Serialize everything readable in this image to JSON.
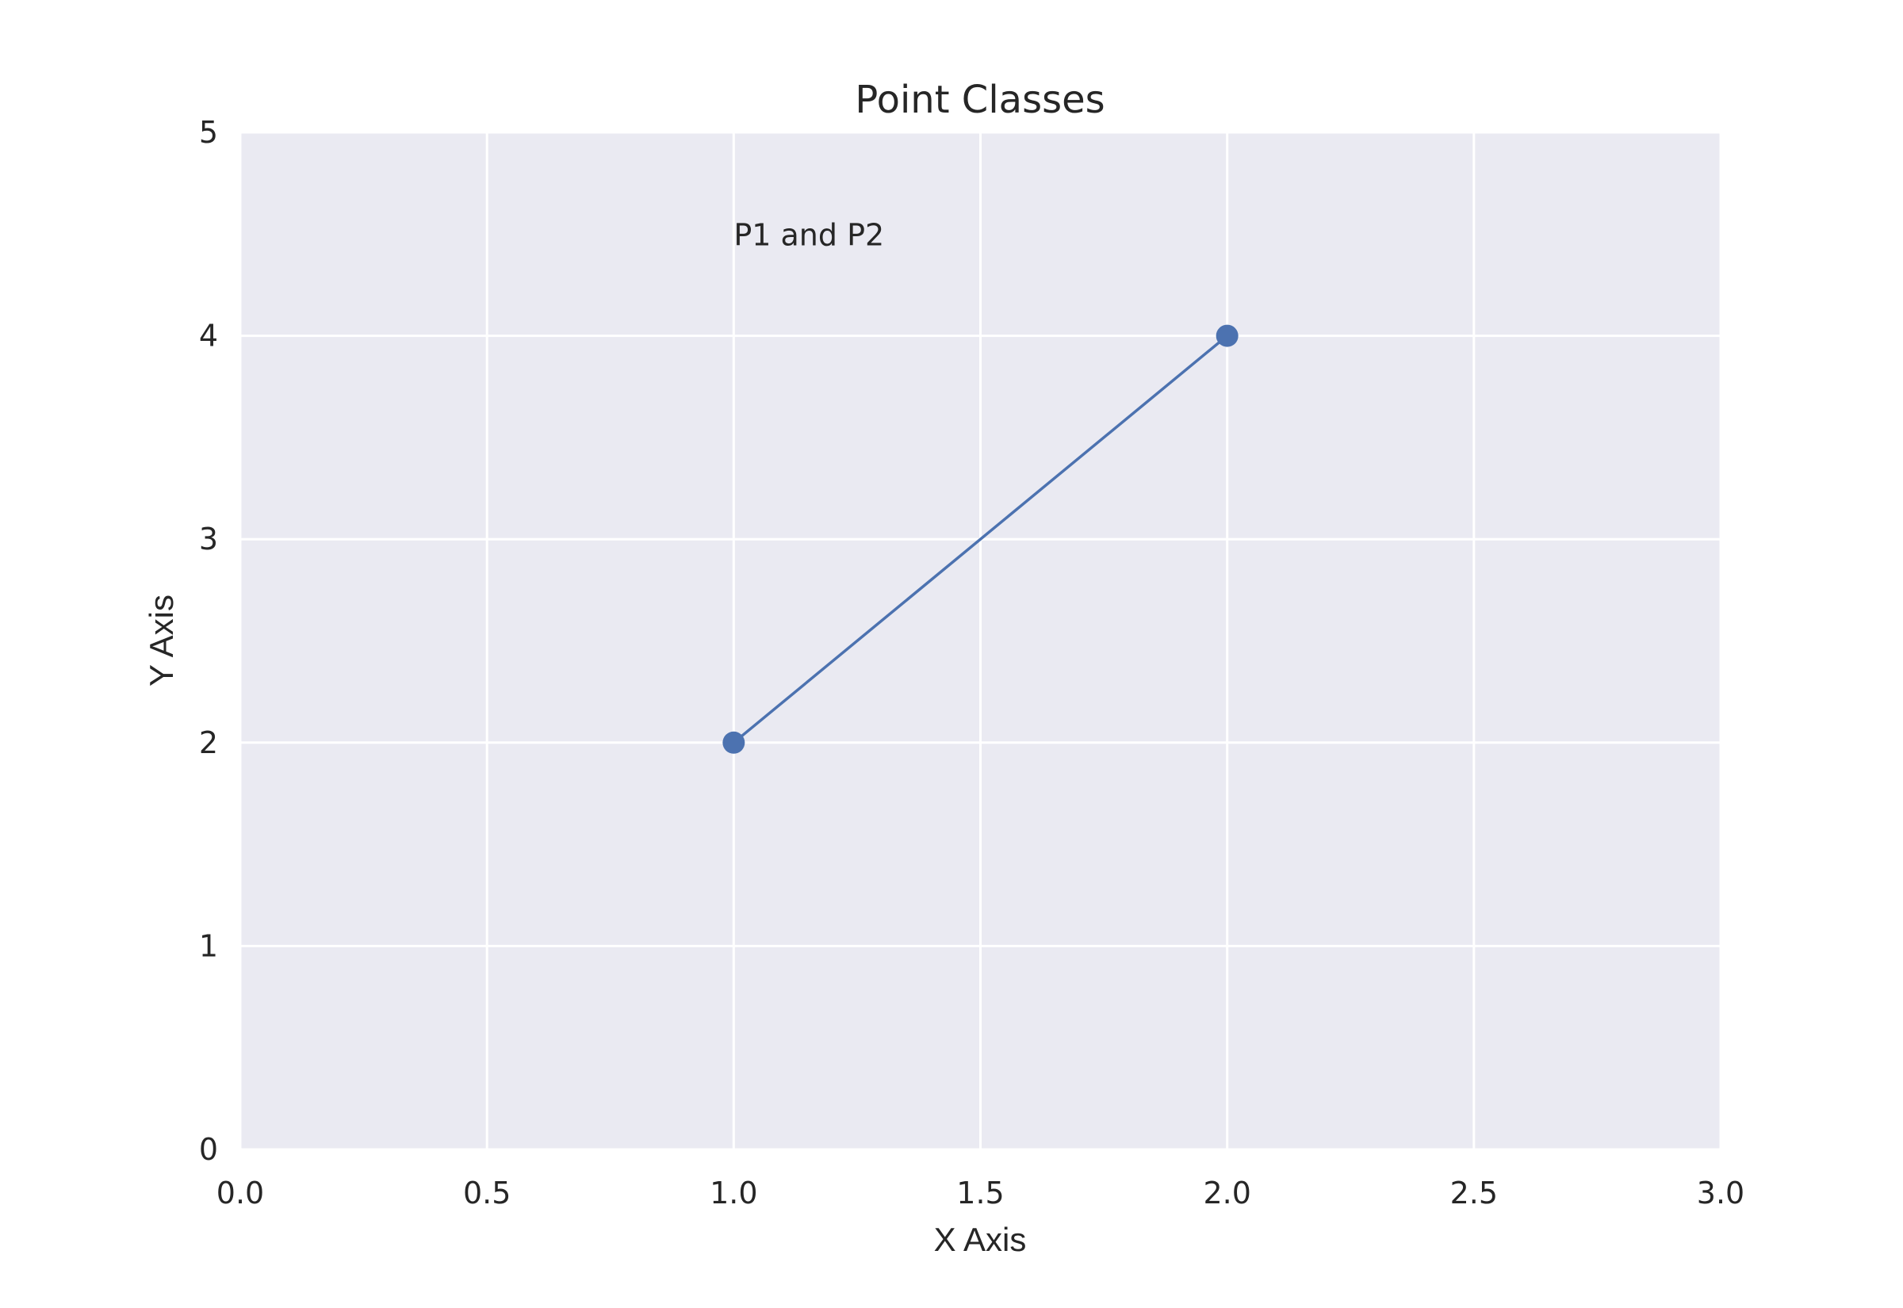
{
  "chart_data": {
    "type": "line",
    "title": "Point Classes",
    "xlabel": "X Axis",
    "ylabel": "Y Axis",
    "xlim": [
      0,
      3
    ],
    "ylim": [
      0,
      5
    ],
    "x_ticks": [
      "0.0",
      "0.5",
      "1.0",
      "1.5",
      "2.0",
      "2.5",
      "3.0"
    ],
    "y_ticks": [
      "0",
      "1",
      "2",
      "3",
      "4",
      "5"
    ],
    "grid": true,
    "series": [
      {
        "x": [
          1,
          2
        ],
        "y": [
          2,
          4
        ],
        "color": "#4c72b0",
        "marker": "circle"
      }
    ],
    "annotations": [
      {
        "text": "P1 and P2",
        "x": 1.0,
        "y": 4.5
      }
    ],
    "colors": {
      "plot_background": "#eaeaf2",
      "grid": "#ffffff",
      "text": "#262626"
    }
  }
}
